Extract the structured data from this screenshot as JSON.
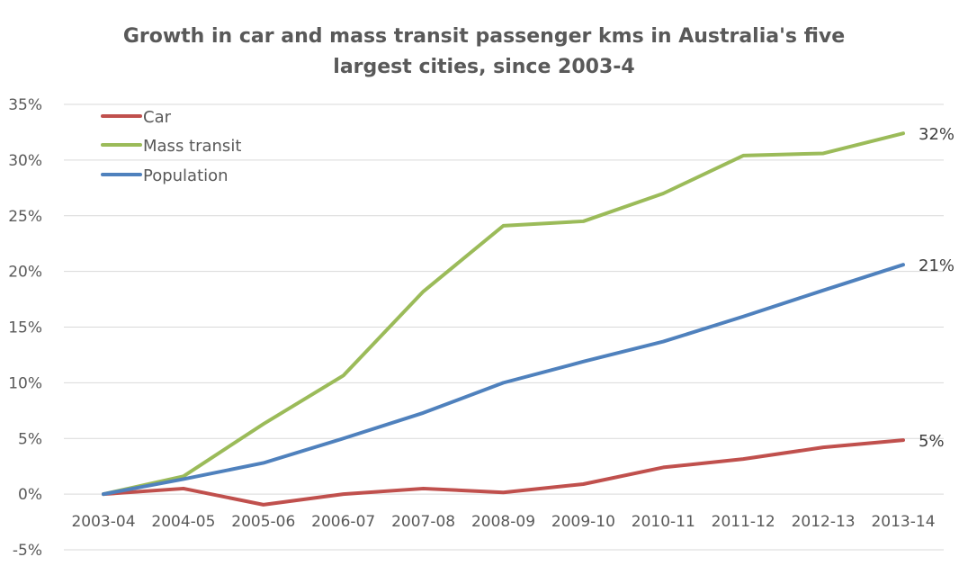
{
  "chart_data": {
    "type": "line",
    "title_lines": [
      "Growth in car and mass transit passenger kms in Australia's five",
      "largest cities, since 2003-4"
    ],
    "xlabel": "",
    "ylabel": "",
    "categories": [
      "2003-04",
      "2004-05",
      "2005-06",
      "2006-07",
      "2007-08",
      "2008-09",
      "2009-10",
      "2010-11",
      "2011-12",
      "2012-13",
      "2013-14"
    ],
    "ylim": [
      -5,
      35
    ],
    "yticks": [
      35,
      30,
      25,
      20,
      15,
      10,
      5,
      0,
      -5
    ],
    "ytick_labels": [
      "35%",
      "30%",
      "25%",
      "20%",
      "15%",
      "10%",
      "5%",
      "0%",
      "-5%"
    ],
    "y_unit": "%",
    "grid": true,
    "legend_position": "top-left",
    "series": [
      {
        "name": "Car",
        "color": "#C0504D",
        "values": [
          0,
          0.5,
          -0.95,
          0,
          0.5,
          0.15,
          0.9,
          2.4,
          3.15,
          4.2,
          4.85
        ],
        "end_label": "5%"
      },
      {
        "name": "Mass transit",
        "color": "#9BBB59",
        "values": [
          0,
          1.6,
          6.3,
          10.65,
          18.2,
          24.1,
          24.5,
          27.0,
          30.4,
          30.6,
          32.4
        ],
        "end_label": "32%"
      },
      {
        "name": "Population",
        "color": "#4F81BD",
        "values": [
          0,
          1.35,
          2.8,
          5.0,
          7.3,
          10.0,
          11.9,
          13.7,
          15.95,
          18.3,
          20.6
        ],
        "end_label": "21%"
      }
    ]
  }
}
